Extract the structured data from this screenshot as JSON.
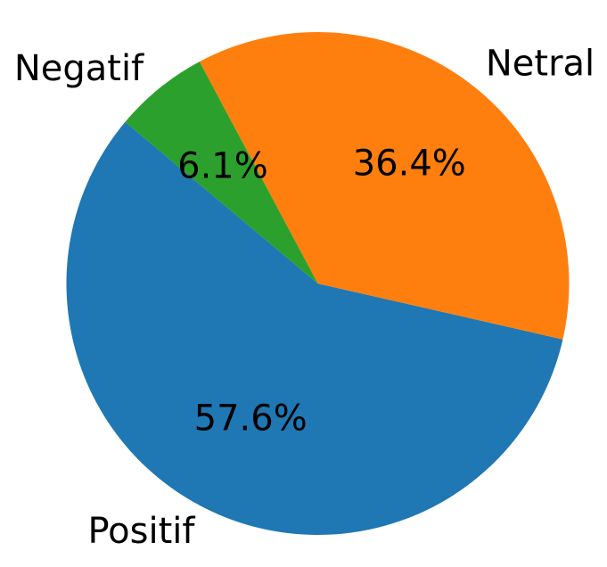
{
  "chart_data": {
    "type": "pie",
    "categories": [
      "Positif",
      "Netral",
      "Negatif"
    ],
    "values": [
      57.6,
      36.4,
      6.1
    ],
    "percent_labels": [
      "57.6%",
      "36.4%",
      "6.1%"
    ],
    "colors": [
      "#1f77b4",
      "#ff7f0e",
      "#2ca02c"
    ],
    "start_angle_deg": 140,
    "direction": "counterclockwise",
    "legend": "none"
  }
}
